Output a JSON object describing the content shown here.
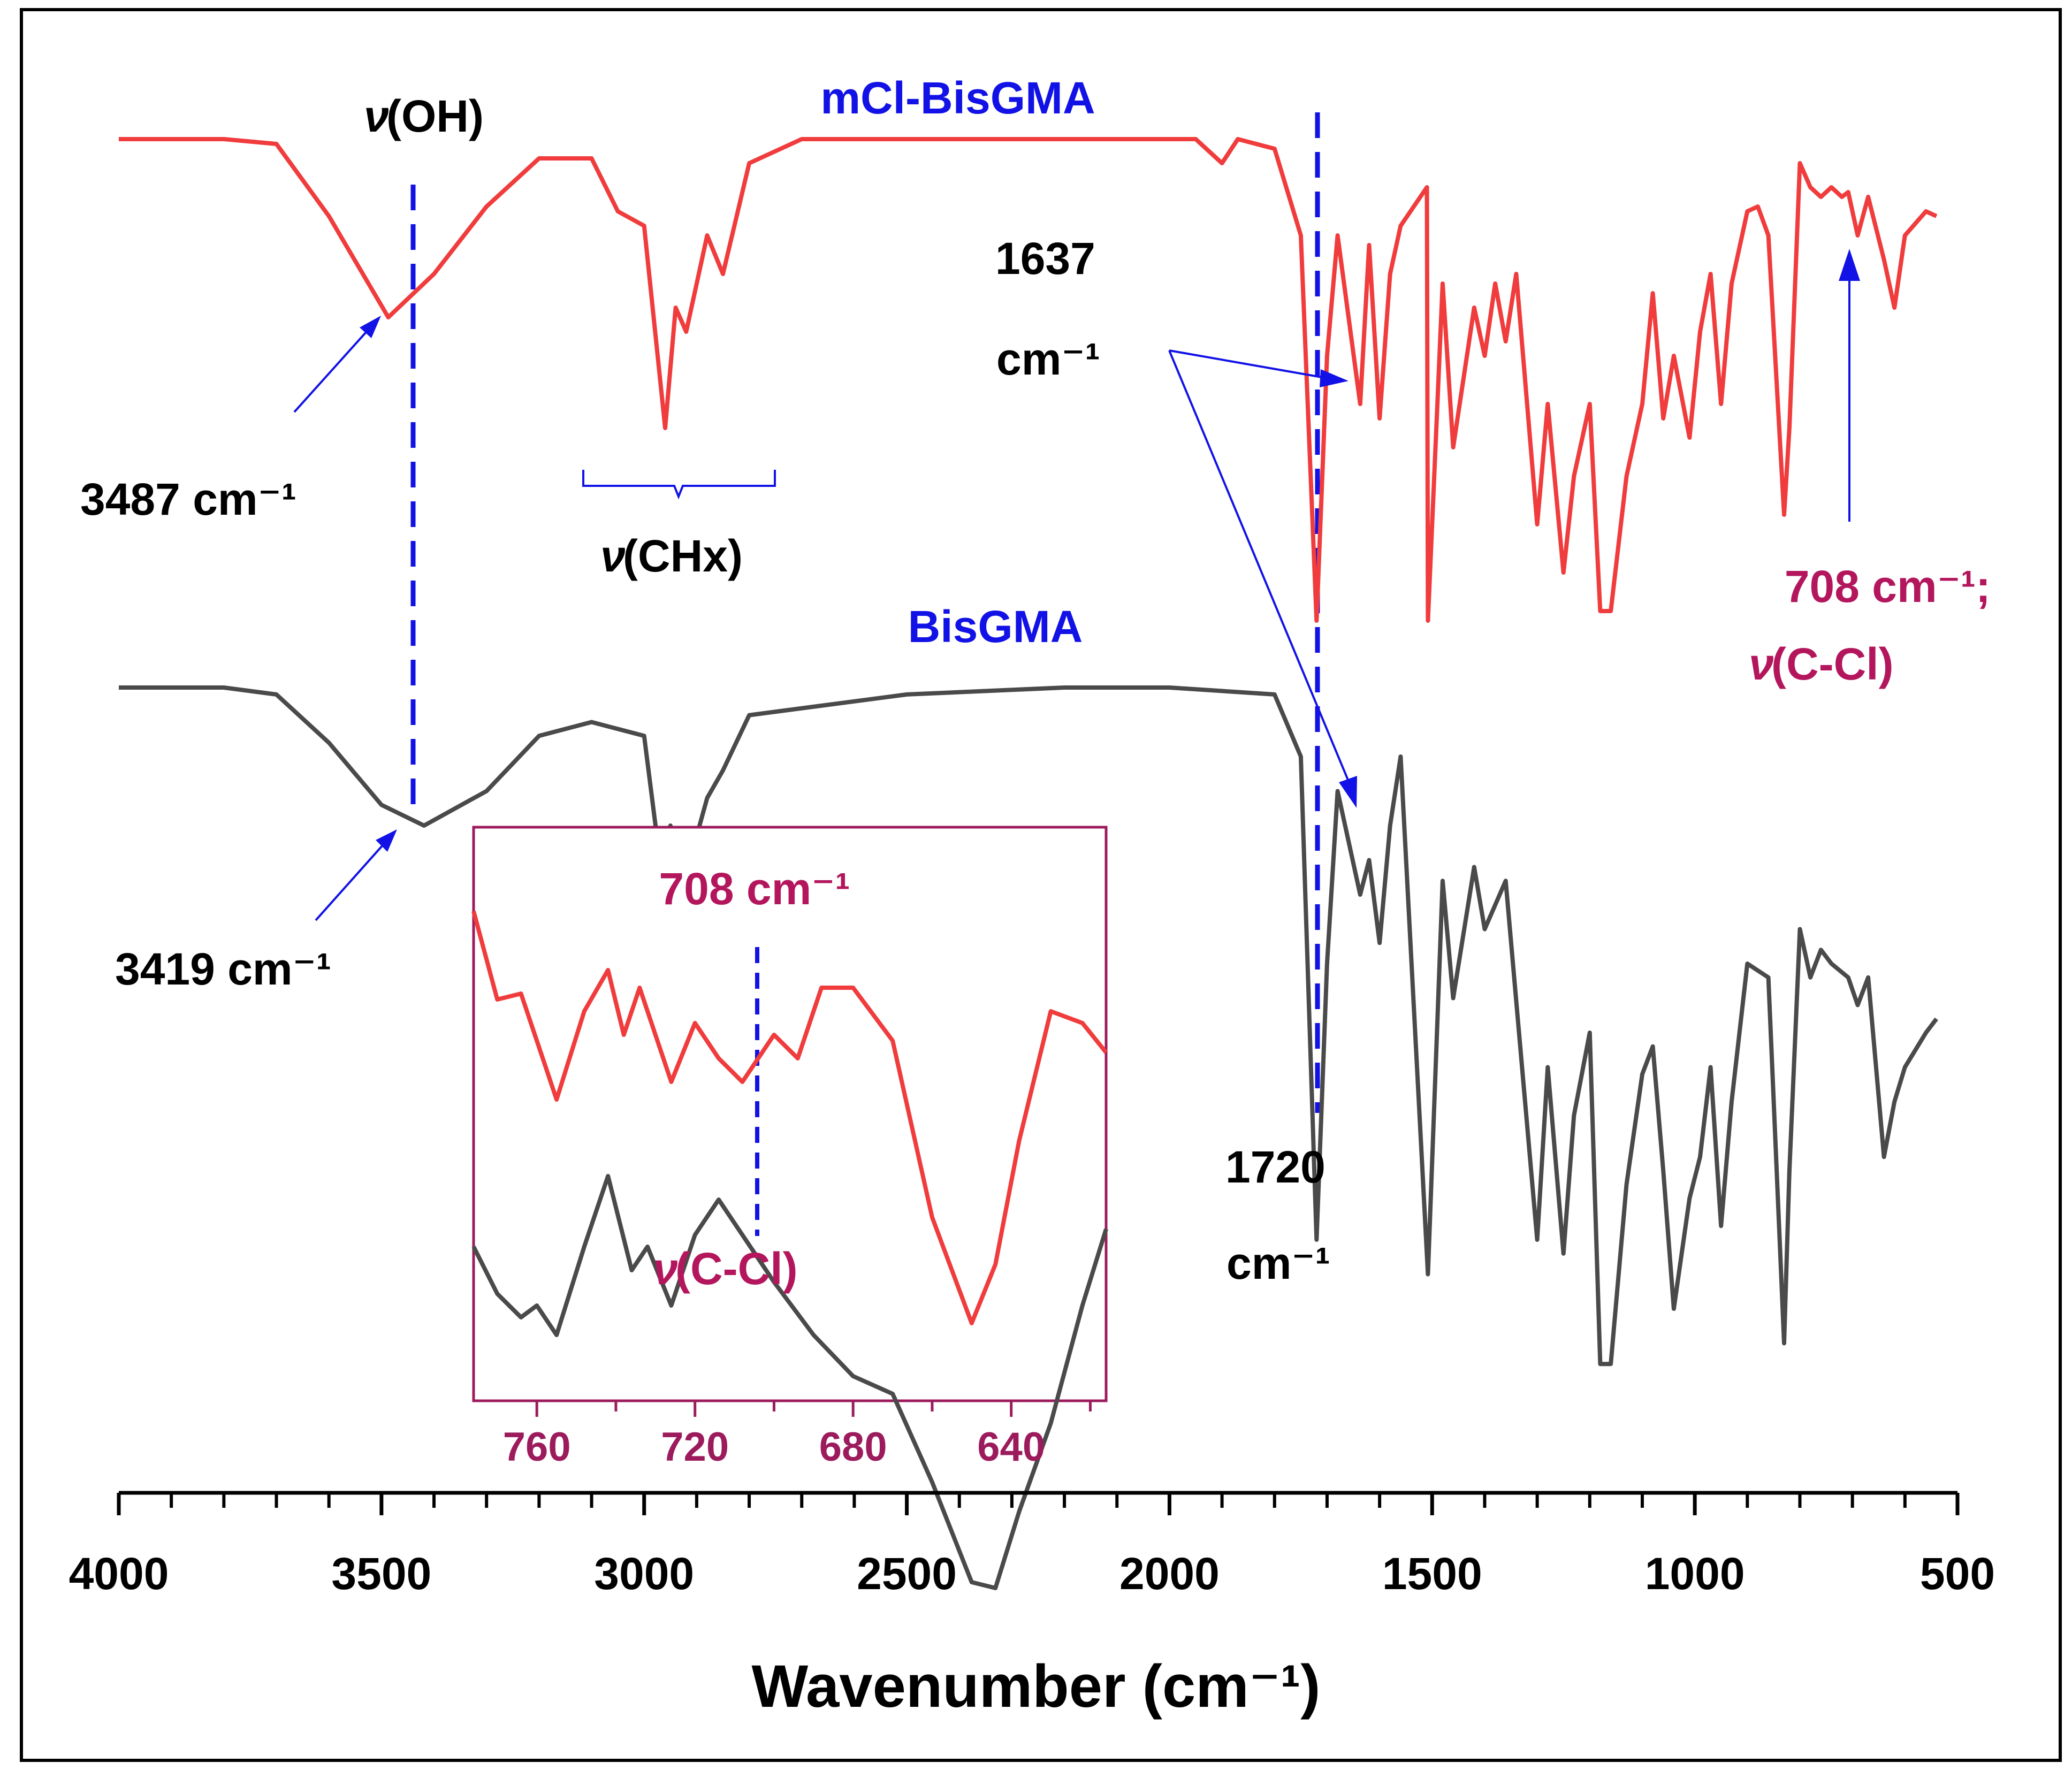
{
  "chart_data": {
    "type": "line",
    "title": "",
    "xlabel": "Wavenumber (cm⁻¹)",
    "ylabel": "",
    "xlim": [
      4000,
      500
    ],
    "x_reversed": true,
    "ticks": [
      4000,
      3500,
      3000,
      2500,
      2000,
      1500,
      1000,
      500
    ],
    "tick_labels": [
      "4000",
      "3500",
      "3000",
      "2500",
      "2000",
      "1500",
      "1000",
      "500"
    ],
    "series": [
      {
        "name": "mCl-BisGMA",
        "color": "#f03c3c",
        "points": [
          [
            4000,
            0.0
          ],
          [
            3800,
            0.0
          ],
          [
            3700,
            0.01
          ],
          [
            3600,
            0.16
          ],
          [
            3487,
            0.37
          ],
          [
            3400,
            0.28
          ],
          [
            3300,
            0.14
          ],
          [
            3200,
            0.04
          ],
          [
            3100,
            0.04
          ],
          [
            3050,
            0.15
          ],
          [
            3000,
            0.18
          ],
          [
            2960,
            0.6
          ],
          [
            2940,
            0.35
          ],
          [
            2920,
            0.4
          ],
          [
            2880,
            0.2
          ],
          [
            2850,
            0.28
          ],
          [
            2800,
            0.05
          ],
          [
            2700,
            0.0
          ],
          [
            2500,
            0.0
          ],
          [
            2200,
            0.0
          ],
          [
            1950,
            0.0
          ],
          [
            1900,
            0.05
          ],
          [
            1870,
            0.0
          ],
          [
            1800,
            0.02
          ],
          [
            1750,
            0.2
          ],
          [
            1720,
            1.0
          ],
          [
            1700,
            0.45
          ],
          [
            1680,
            0.2
          ],
          [
            1637,
            0.55
          ],
          [
            1620,
            0.22
          ],
          [
            1600,
            0.58
          ],
          [
            1580,
            0.28
          ],
          [
            1560,
            0.18
          ],
          [
            1510,
            0.1
          ],
          [
            1508,
            1.0
          ],
          [
            1480,
            0.3
          ],
          [
            1460,
            0.64
          ],
          [
            1420,
            0.35
          ],
          [
            1400,
            0.45
          ],
          [
            1380,
            0.3
          ],
          [
            1360,
            0.42
          ],
          [
            1340,
            0.28
          ],
          [
            1300,
            0.8
          ],
          [
            1280,
            0.55
          ],
          [
            1250,
            0.9
          ],
          [
            1230,
            0.7
          ],
          [
            1200,
            0.55
          ],
          [
            1180,
            0.98
          ],
          [
            1160,
            0.98
          ],
          [
            1130,
            0.7
          ],
          [
            1100,
            0.55
          ],
          [
            1080,
            0.32
          ],
          [
            1060,
            0.58
          ],
          [
            1040,
            0.45
          ],
          [
            1010,
            0.62
          ],
          [
            990,
            0.4
          ],
          [
            970,
            0.28
          ],
          [
            950,
            0.55
          ],
          [
            930,
            0.3
          ],
          [
            900,
            0.15
          ],
          [
            880,
            0.14
          ],
          [
            860,
            0.2
          ],
          [
            830,
            0.78
          ],
          [
            820,
            0.6
          ],
          [
            800,
            0.05
          ],
          [
            780,
            0.1
          ],
          [
            760,
            0.12
          ],
          [
            740,
            0.1
          ],
          [
            720,
            0.12
          ],
          [
            708,
            0.11
          ],
          [
            690,
            0.2
          ],
          [
            670,
            0.12
          ],
          [
            640,
            0.25
          ],
          [
            620,
            0.35
          ],
          [
            600,
            0.2
          ],
          [
            560,
            0.15
          ],
          [
            540,
            0.16
          ]
        ]
      },
      {
        "name": "BisGMA",
        "color": "#4a4a4a",
        "points": [
          [
            4000,
            0.0
          ],
          [
            3800,
            0.0
          ],
          [
            3700,
            0.01
          ],
          [
            3600,
            0.08
          ],
          [
            3500,
            0.17
          ],
          [
            3419,
            0.2
          ],
          [
            3300,
            0.15
          ],
          [
            3200,
            0.07
          ],
          [
            3100,
            0.05
          ],
          [
            3050,
            0.06
          ],
          [
            3000,
            0.07
          ],
          [
            2970,
            0.25
          ],
          [
            2950,
            0.2
          ],
          [
            2920,
            0.27
          ],
          [
            2880,
            0.16
          ],
          [
            2850,
            0.12
          ],
          [
            2800,
            0.04
          ],
          [
            2500,
            0.01
          ],
          [
            2200,
            0.0
          ],
          [
            2000,
            0.0
          ],
          [
            1800,
            0.01
          ],
          [
            1750,
            0.1
          ],
          [
            1720,
            0.8
          ],
          [
            1700,
            0.4
          ],
          [
            1680,
            0.15
          ],
          [
            1637,
            0.3
          ],
          [
            1620,
            0.25
          ],
          [
            1600,
            0.37
          ],
          [
            1580,
            0.2
          ],
          [
            1560,
            0.1
          ],
          [
            1508,
            0.85
          ],
          [
            1480,
            0.28
          ],
          [
            1460,
            0.45
          ],
          [
            1420,
            0.26
          ],
          [
            1400,
            0.35
          ],
          [
            1360,
            0.28
          ],
          [
            1300,
            0.8
          ],
          [
            1280,
            0.55
          ],
          [
            1250,
            0.82
          ],
          [
            1230,
            0.62
          ],
          [
            1200,
            0.5
          ],
          [
            1180,
            0.98
          ],
          [
            1160,
            0.98
          ],
          [
            1130,
            0.72
          ],
          [
            1100,
            0.56
          ],
          [
            1080,
            0.52
          ],
          [
            1060,
            0.7
          ],
          [
            1040,
            0.9
          ],
          [
            1010,
            0.74
          ],
          [
            990,
            0.68
          ],
          [
            970,
            0.55
          ],
          [
            950,
            0.78
          ],
          [
            930,
            0.6
          ],
          [
            900,
            0.4
          ],
          [
            860,
            0.42
          ],
          [
            830,
            0.95
          ],
          [
            820,
            0.7
          ],
          [
            800,
            0.35
          ],
          [
            780,
            0.42
          ],
          [
            760,
            0.38
          ],
          [
            740,
            0.4
          ],
          [
            708,
            0.42
          ],
          [
            690,
            0.46
          ],
          [
            670,
            0.42
          ],
          [
            640,
            0.68
          ],
          [
            620,
            0.6
          ],
          [
            600,
            0.55
          ],
          [
            560,
            0.5
          ],
          [
            540,
            0.48
          ]
        ]
      }
    ],
    "inset": {
      "xlim": [
        776,
        616
      ],
      "ticks": [
        760,
        720,
        680,
        640
      ],
      "tick_labels": [
        "760",
        "720",
        "680",
        "640"
      ],
      "series": [
        {
          "name": "mCl-BisGMA",
          "color": "#f03c3c",
          "points": [
            [
              776,
              0.03
            ],
            [
              770,
              0.18
            ],
            [
              764,
              0.17
            ],
            [
              755,
              0.35
            ],
            [
              748,
              0.2
            ],
            [
              742,
              0.13
            ],
            [
              738,
              0.24
            ],
            [
              734,
              0.16
            ],
            [
              730,
              0.24
            ],
            [
              726,
              0.32
            ],
            [
              720,
              0.22
            ],
            [
              714,
              0.28
            ],
            [
              708,
              0.32
            ],
            [
              700,
              0.24
            ],
            [
              694,
              0.28
            ],
            [
              688,
              0.16
            ],
            [
              680,
              0.16
            ],
            [
              670,
              0.25
            ],
            [
              660,
              0.55
            ],
            [
              650,
              0.73
            ],
            [
              644,
              0.63
            ],
            [
              638,
              0.42
            ],
            [
              630,
              0.2
            ],
            [
              622,
              0.22
            ],
            [
              616,
              0.27
            ]
          ]
        },
        {
          "name": "BisGMA",
          "color": "#4a4a4a",
          "points": [
            [
              776,
              0.6
            ],
            [
              770,
              0.68
            ],
            [
              764,
              0.72
            ],
            [
              760,
              0.7
            ],
            [
              755,
              0.75
            ],
            [
              748,
              0.6
            ],
            [
              742,
              0.48
            ],
            [
              736,
              0.64
            ],
            [
              732,
              0.6
            ],
            [
              726,
              0.7
            ],
            [
              720,
              0.58
            ],
            [
              714,
              0.52
            ],
            [
              708,
              0.58
            ],
            [
              700,
              0.66
            ],
            [
              690,
              0.75
            ],
            [
              680,
              0.82
            ],
            [
              670,
              0.85
            ],
            [
              660,
              1.0
            ],
            [
              650,
              1.17
            ],
            [
              644,
              1.18
            ],
            [
              638,
              1.05
            ],
            [
              630,
              0.9
            ],
            [
              622,
              0.7
            ],
            [
              616,
              0.57
            ]
          ]
        }
      ],
      "title": "708 cm⁻¹",
      "guide_x": 708,
      "guide_label": "(C-Cl)"
    },
    "annotations": {
      "label_red": "mCl-BisGMA",
      "label_gray": "BisGMA",
      "oh_label": "(OH)",
      "chx_label": "(CHx)",
      "nu": "ν",
      "peak_3487": "3487 cm⁻¹",
      "peak_3419": "3419 cm⁻¹",
      "peak_1637_num": "1637",
      "peak_1637_unit": "cm⁻¹",
      "peak_1720_num": "1720",
      "peak_1720_unit": "cm⁻¹",
      "peak_708_red": "708 cm⁻¹;",
      "ccl_red": "(C-Cl)"
    }
  }
}
